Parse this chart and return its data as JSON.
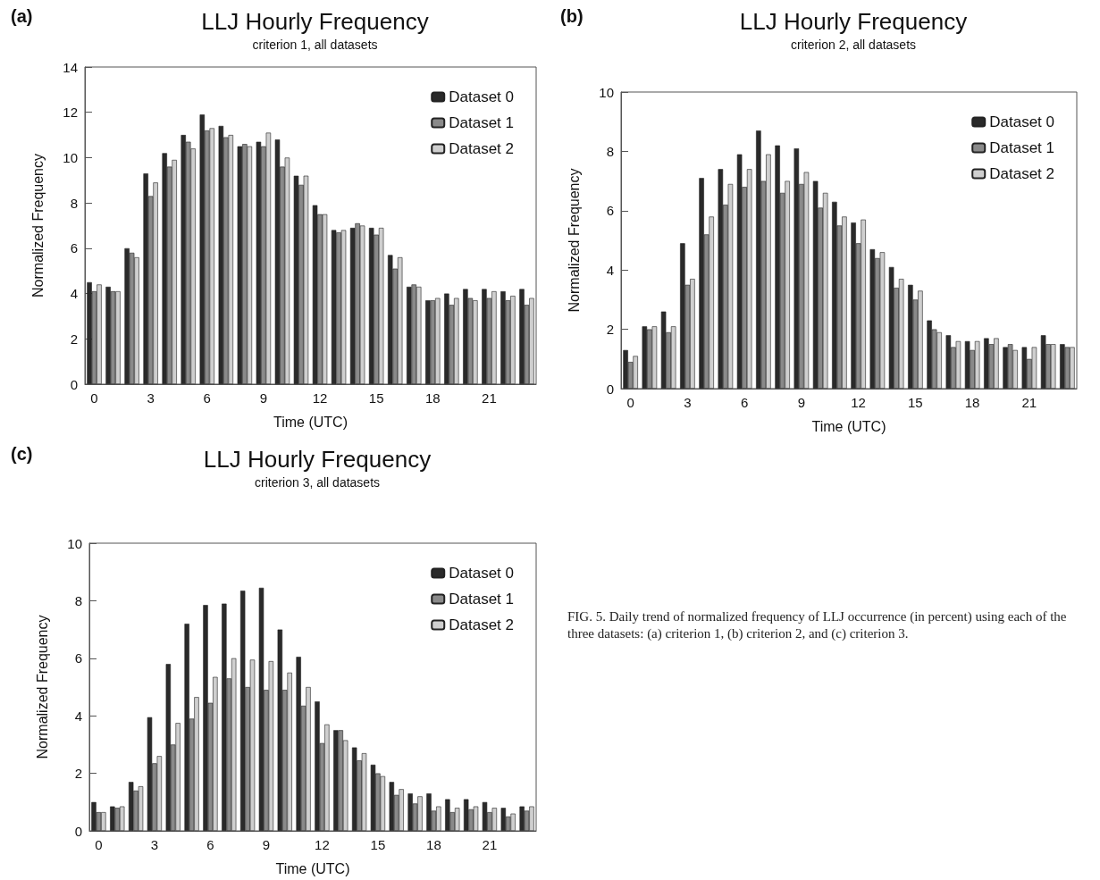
{
  "chart_data": [
    {
      "type": "bar",
      "title": "LLJ Hourly Frequency",
      "subtitle": "criterion 1, all datasets",
      "xlabel": "Time (UTC)",
      "ylabel": "Normalized Frequency",
      "annotations": [
        "(a)"
      ],
      "categories": [
        "0",
        null,
        null,
        "3",
        null,
        null,
        "6",
        null,
        null,
        "9",
        null,
        null,
        "12",
        null,
        null,
        "15",
        null,
        null,
        "18",
        null,
        null,
        "21",
        null,
        null
      ],
      "series": [
        {
          "name": "Dataset 0",
          "color": "#2a2a2a",
          "values": [
            4.5,
            4.3,
            6.0,
            9.3,
            10.2,
            11.0,
            11.9,
            11.4,
            10.5,
            10.7,
            10.8,
            9.2,
            7.9,
            6.8,
            6.9,
            6.9,
            5.7,
            4.3,
            3.7,
            4.0,
            4.2,
            4.2,
            4.1,
            4.2
          ]
        },
        {
          "name": "Dataset 1",
          "color": "#8a8a8a",
          "values": [
            4.1,
            4.1,
            5.8,
            8.3,
            9.6,
            10.7,
            11.2,
            10.9,
            10.6,
            10.5,
            9.6,
            8.8,
            7.5,
            6.7,
            7.1,
            6.6,
            5.1,
            4.4,
            3.7,
            3.5,
            3.8,
            3.8,
            3.7,
            3.5
          ]
        },
        {
          "name": "Dataset 2",
          "color": "#cfcfcf",
          "values": [
            4.4,
            4.1,
            5.6,
            8.9,
            9.9,
            10.4,
            11.3,
            11.0,
            10.5,
            11.1,
            10.0,
            9.2,
            7.5,
            6.8,
            7.0,
            6.9,
            5.6,
            4.3,
            3.8,
            3.8,
            3.7,
            4.1,
            3.9,
            3.8
          ]
        }
      ],
      "ylim": [
        0,
        14
      ],
      "yticks": [
        0,
        2,
        4,
        6,
        8,
        10,
        12,
        14
      ],
      "grid": false,
      "legend": "top right"
    },
    {
      "type": "bar",
      "title": "LLJ Hourly Frequency",
      "subtitle": "criterion 2, all datasets",
      "xlabel": "Time (UTC)",
      "ylabel": "Normalized Frequency",
      "annotations": [
        "(b)"
      ],
      "categories": [
        "0",
        null,
        null,
        "3",
        null,
        null,
        "6",
        null,
        null,
        "9",
        null,
        null,
        "12",
        null,
        null,
        "15",
        null,
        null,
        "18",
        null,
        null,
        "21",
        null,
        null
      ],
      "series": [
        {
          "name": "Dataset 0",
          "color": "#2a2a2a",
          "values": [
            1.3,
            2.1,
            2.6,
            4.9,
            7.1,
            7.4,
            7.9,
            8.7,
            8.2,
            8.1,
            7.0,
            6.3,
            5.6,
            4.7,
            4.1,
            3.5,
            2.3,
            1.8,
            1.6,
            1.7,
            1.4,
            1.4,
            1.8,
            1.5
          ]
        },
        {
          "name": "Dataset 1",
          "color": "#8a8a8a",
          "values": [
            0.9,
            2.0,
            1.9,
            3.5,
            5.2,
            6.2,
            6.8,
            7.0,
            6.6,
            6.9,
            6.1,
            5.5,
            4.9,
            4.4,
            3.4,
            3.0,
            2.0,
            1.4,
            1.3,
            1.5,
            1.5,
            1.0,
            1.5,
            1.4
          ]
        },
        {
          "name": "Dataset 2",
          "color": "#cfcfcf",
          "values": [
            1.1,
            2.1,
            2.1,
            3.7,
            5.8,
            6.9,
            7.4,
            7.9,
            7.0,
            7.3,
            6.6,
            5.8,
            5.7,
            4.6,
            3.7,
            3.3,
            1.9,
            1.6,
            1.6,
            1.7,
            1.3,
            1.4,
            1.5,
            1.4
          ]
        }
      ],
      "ylim": [
        0,
        10
      ],
      "yticks": [
        0,
        2,
        4,
        6,
        8,
        10
      ],
      "grid": false,
      "legend": "top right"
    },
    {
      "type": "bar",
      "title": "LLJ Hourly Frequency",
      "subtitle": "criterion 3, all datasets",
      "xlabel": "Time (UTC)",
      "ylabel": "Normalized Frequency",
      "annotations": [
        "(c)",
        "FIG. 5. Daily trend of normalized frequency of LLJ occurrence (in percent) using each of the three datasets: (a) criterion 1, (b) criterion 2, and (c) criterion 3."
      ],
      "categories": [
        "0",
        null,
        null,
        "3",
        null,
        null,
        "6",
        null,
        null,
        "9",
        null,
        null,
        "12",
        null,
        null,
        "15",
        null,
        null,
        "18",
        null,
        null,
        "21",
        null,
        null
      ],
      "series": [
        {
          "name": "Dataset 0",
          "color": "#2a2a2a",
          "values": [
            1.0,
            0.85,
            1.7,
            3.95,
            5.8,
            7.2,
            7.85,
            7.9,
            8.35,
            8.45,
            7.0,
            6.05,
            4.5,
            3.5,
            2.9,
            2.3,
            1.7,
            1.3,
            1.3,
            1.1,
            1.1,
            1.0,
            0.8,
            0.85
          ]
        },
        {
          "name": "Dataset 1",
          "color": "#8a8a8a",
          "values": [
            0.65,
            0.8,
            1.4,
            2.35,
            3.0,
            3.9,
            4.45,
            5.3,
            5.0,
            4.9,
            4.9,
            4.35,
            3.05,
            3.5,
            2.45,
            2.0,
            1.25,
            0.95,
            0.7,
            0.65,
            0.75,
            0.65,
            0.5,
            0.7
          ]
        },
        {
          "name": "Dataset 2",
          "color": "#cfcfcf",
          "values": [
            0.65,
            0.85,
            1.55,
            2.6,
            3.75,
            4.65,
            5.35,
            6.0,
            5.95,
            5.9,
            5.5,
            5.0,
            3.7,
            3.15,
            2.7,
            1.9,
            1.45,
            1.2,
            0.85,
            0.8,
            0.85,
            0.8,
            0.6,
            0.85
          ]
        }
      ],
      "ylim": [
        0,
        10
      ],
      "yticks": [
        0,
        2,
        4,
        6,
        8,
        10
      ],
      "grid": false,
      "legend": "top right"
    }
  ]
}
